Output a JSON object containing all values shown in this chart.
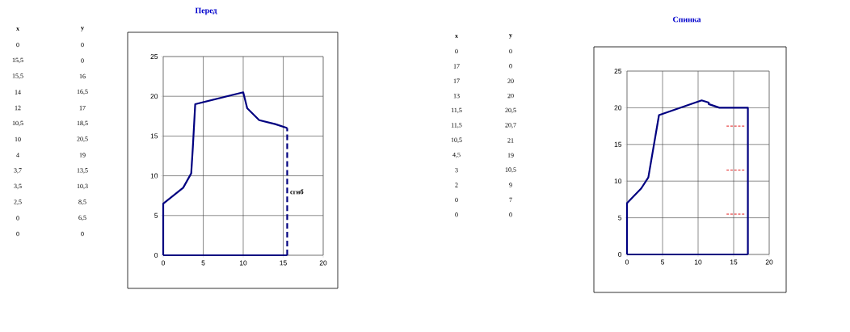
{
  "chart_data": [
    {
      "type": "other",
      "annotations": [
        "x",
        "y",
        "0",
        "0",
        "15,5",
        "0",
        "15,5",
        "16",
        "14",
        "16,5",
        "12",
        "17",
        "10,5",
        "18,5",
        "10",
        "20,5",
        "4",
        "19",
        "3,7",
        "13,5",
        "3,5",
        "10,3",
        "2,5",
        "8,5",
        "0",
        "6,5",
        "0",
        "0"
      ]
    },
    {
      "type": "line",
      "title": "Перед",
      "series": [
        {
          "x": [
            0,
            15.5
          ],
          "values": [
            0,
            0
          ],
          "color": "#000080",
          "line_style": "solid"
        },
        {
          "name": "сгиб",
          "x": [
            15.5,
            15.5
          ],
          "values": [
            0,
            16
          ],
          "color": "#000080",
          "line_style": "dashed"
        },
        {
          "x": [
            15.5,
            14,
            12,
            10.5,
            10,
            4,
            3.7,
            3.5,
            2.5,
            0,
            0
          ],
          "values": [
            16,
            16.5,
            17,
            18.5,
            20.5,
            19,
            13.5,
            10.3,
            8.5,
            6.5,
            0
          ],
          "color": "#000080",
          "line_style": "solid"
        }
      ],
      "xlim": [
        0,
        20
      ],
      "ylim": [
        0,
        25
      ],
      "xticks": [
        0,
        5,
        10,
        15,
        20
      ],
      "yticks": [
        0,
        5,
        10,
        15,
        20,
        25
      ],
      "grid": true,
      "marker": "none"
    },
    {
      "type": "other",
      "annotations": [
        "x",
        "y",
        "0",
        "0",
        "17",
        "0",
        "17",
        "20",
        "13",
        "20",
        "11,5",
        "20,5",
        "11,5",
        "20,7",
        "10,5",
        "21",
        "4,5",
        "19",
        "3",
        "10,5",
        "2",
        "9",
        "0",
        "7",
        "0",
        "0"
      ]
    },
    {
      "type": "line",
      "title": "Спинка",
      "series": [
        {
          "x": [
            0,
            17
          ],
          "values": [
            0,
            0
          ],
          "color": "#000080",
          "line_style": "solid"
        },
        {
          "x": [
            17,
            17,
            13,
            11.5,
            11.5,
            10.5,
            4.5,
            3,
            2,
            0,
            0
          ],
          "values": [
            0,
            20,
            20,
            20.5,
            20.7,
            21,
            19,
            10.5,
            9,
            7,
            0
          ],
          "color": "#000080",
          "line_style": "solid"
        },
        {
          "x": [
            14,
            16.5
          ],
          "values": [
            17.5,
            17.5
          ],
          "color": "#e00000",
          "line_style": "dashed"
        },
        {
          "x": [
            14,
            16.5
          ],
          "values": [
            11.5,
            11.5
          ],
          "color": "#e00000",
          "line_style": "dashed"
        },
        {
          "x": [
            14,
            16.5
          ],
          "values": [
            5.5,
            5.5
          ],
          "color": "#e00000",
          "line_style": "dashed"
        }
      ],
      "xlim": [
        0,
        20
      ],
      "ylim": [
        0,
        25
      ],
      "xticks": [
        0,
        5,
        10,
        15,
        20
      ],
      "yticks": [
        0,
        5,
        10,
        15,
        20,
        25
      ],
      "grid": true,
      "marker": "none"
    }
  ]
}
